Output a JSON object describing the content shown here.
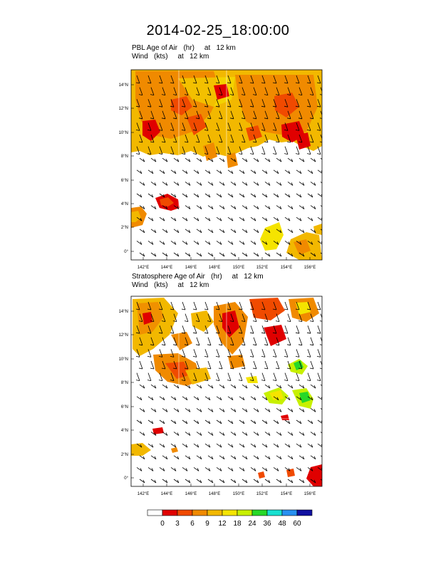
{
  "title": "2014-02-25_18:00:00",
  "panels": [
    {
      "field_line": "PBL Age of Air   (hr)     at   12 km",
      "wind_line": "Wind   (kts)     at   12 km",
      "y_ticks": [
        "0°",
        "2°N",
        "4°N",
        "6°N",
        "8°N",
        "10°N",
        "12°N",
        "14°N"
      ],
      "x_ticks": [
        "142°E",
        "144°E",
        "146°E",
        "148°E",
        "150°E",
        "152°E",
        "154°E",
        "156°E"
      ]
    },
    {
      "field_line": "Stratosphere Age of Air   (hr)     at   12 km",
      "wind_line": "Wind   (kts)     at   12 km",
      "y_ticks": [
        "0°",
        "2°N",
        "4°N",
        "6°N",
        "8°N",
        "10°N",
        "12°N",
        "14°N"
      ],
      "x_ticks": [
        "142°E",
        "144°E",
        "146°E",
        "148°E",
        "150°E",
        "152°E",
        "154°E",
        "156°E"
      ]
    }
  ],
  "colorbar": {
    "labels": [
      "0",
      "3",
      "6",
      "9",
      "12",
      "18",
      "24",
      "36",
      "48",
      "60"
    ],
    "colors": [
      "#ffffff",
      "#e00000",
      "#f04a00",
      "#f08a00",
      "#f2b800",
      "#f5e400",
      "#c8f000",
      "#28d828",
      "#18e0d0",
      "#2890f0",
      "#1010a0"
    ]
  }
}
